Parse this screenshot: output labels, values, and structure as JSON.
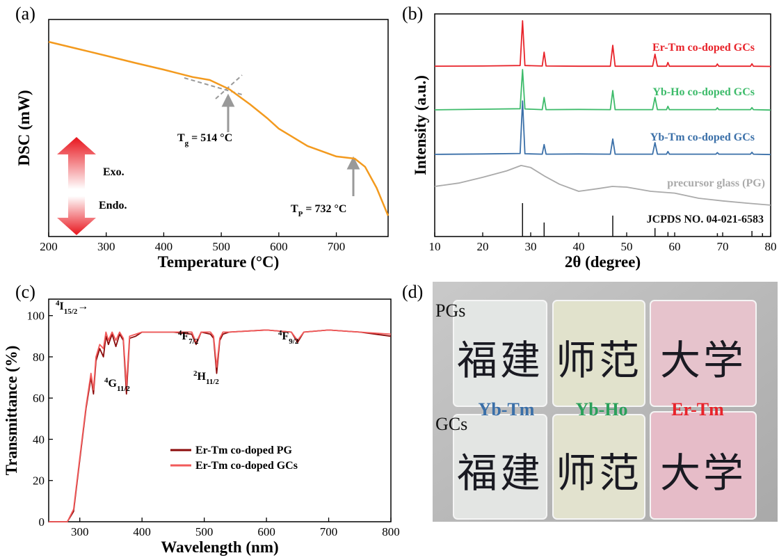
{
  "chart_data": [
    {
      "type": "line",
      "panel_label": "(a)",
      "x_label": "Temperature (°C)",
      "y_label": "DSC (mW)",
      "xlim": [
        200,
        790
      ],
      "xticks": [
        200,
        300,
        400,
        500,
        600,
        700
      ],
      "ylim": [
        0,
        100
      ],
      "series": [
        {
          "color": "#f39a1e",
          "x": [
            200,
            250,
            300,
            350,
            400,
            450,
            480,
            514,
            550,
            580,
            600,
            620,
            640,
            650,
            700,
            732,
            750,
            770,
            790
          ],
          "values": [
            89.7,
            86.5,
            83.3,
            80,
            76.9,
            73.5,
            72.1,
            67.9,
            60.9,
            54.5,
            49.7,
            46.5,
            43.3,
            41.7,
            36.9,
            35.9,
            32.1,
            22.4,
            9.6
          ]
        }
      ],
      "annotations": [
        {
          "parts": [
            {
              "text": "T"
            },
            {
              "text": "g",
              "style": "sub"
            },
            {
              "text": " = 514 °C"
            }
          ]
        },
        {
          "parts": [
            {
              "text": "T"
            },
            {
              "text": "P",
              "style": "sub"
            },
            {
              "text": " = 732 °C"
            }
          ]
        },
        {
          "parts": [
            {
              "text": "Exo."
            }
          ]
        },
        {
          "parts": [
            {
              "text": "Endo."
            }
          ]
        }
      ]
    },
    {
      "type": "line",
      "panel_label": "(b)",
      "x_label": "2θ (degree)",
      "y_label": "Intensity (a.u.)",
      "xlim": [
        10,
        80
      ],
      "xticks": [
        10,
        20,
        30,
        40,
        50,
        60,
        70,
        80
      ],
      "ylim": [
        0,
        100
      ],
      "series": [
        {
          "name": "Er-Tm co-doped GCs",
          "color": "#e8232a",
          "x": [
            10,
            20,
            27.8,
            28.3,
            28.8,
            32.4,
            32.8,
            33.2,
            40,
            46.6,
            47.1,
            47.6,
            55.4,
            55.9,
            56.4,
            58.3,
            58.6,
            58.9,
            68.6,
            68.9,
            69.2,
            75.8,
            76.1,
            76.4,
            80
          ],
          "values": [
            76.5,
            76.6,
            76.8,
            96.9,
            76.8,
            76.6,
            82.8,
            76.6,
            76.5,
            76.5,
            85.9,
            76.5,
            76.5,
            81.9,
            76.5,
            76.5,
            78.2,
            76.5,
            76.5,
            77.5,
            76.5,
            76.5,
            77.6,
            76.5,
            76.4
          ]
        },
        {
          "name": "Yb-Ho co-doped GCs",
          "color": "#3dbb6a",
          "x": [
            10,
            20,
            27.8,
            28.3,
            28.8,
            32.4,
            32.8,
            33.2,
            40,
            46.6,
            47.1,
            47.6,
            55.4,
            55.9,
            56.4,
            58.3,
            58.6,
            58.9,
            68.6,
            68.9,
            69.2,
            75.8,
            76.1,
            76.4,
            80
          ],
          "values": [
            56.9,
            57.2,
            57.4,
            75,
            57.3,
            57,
            62.5,
            57,
            57.1,
            57,
            65.6,
            57,
            57,
            62.5,
            57,
            57,
            58.5,
            57,
            57,
            57.8,
            57,
            57,
            57.9,
            57,
            56.8
          ]
        },
        {
          "name": "Yb-Tm co-doped GCs",
          "color": "#3a6fa8",
          "x": [
            10,
            20,
            27.8,
            28.3,
            28.8,
            32.4,
            32.8,
            33.2,
            40,
            46.6,
            47.1,
            47.6,
            55.4,
            55.9,
            56.4,
            58.3,
            58.6,
            58.9,
            68.6,
            68.9,
            69.2,
            75.8,
            76.1,
            76.4,
            80
          ],
          "values": [
            36.9,
            37.1,
            37.3,
            60.9,
            37.2,
            37,
            41.3,
            37,
            37.1,
            37,
            43.8,
            37,
            37,
            42.2,
            37,
            37,
            38.2,
            37,
            37,
            37.7,
            37,
            37,
            37.8,
            37,
            36.8
          ]
        },
        {
          "name": "precursor glass (PG)",
          "color": "#aaaaaa",
          "x": [
            10,
            15,
            20,
            25,
            28,
            30,
            33,
            36,
            40,
            44,
            47,
            50,
            55,
            60,
            65,
            70,
            75,
            80
          ],
          "values": [
            22.5,
            24,
            26.6,
            29.5,
            31.9,
            31,
            27,
            23.5,
            20.3,
            21.5,
            22.5,
            22.2,
            20.3,
            19.5,
            17.2,
            16,
            15,
            14.1
          ]
        },
        {
          "name": "JCPDS NO. 04-021-6583",
          "color": "#111111",
          "kind": "stick",
          "x": [
            28.3,
            32.8,
            47.1,
            55.9,
            58.6,
            68.9,
            76.1,
            78.3
          ],
          "values": [
            15,
            6.3,
            9.4,
            3.8,
            2,
            1.5,
            2.5,
            1.5
          ]
        }
      ]
    },
    {
      "type": "line",
      "panel_label": "(c)",
      "x_label": "Wavelength (nm)",
      "y_label": "Transmittance (%)",
      "xlim": [
        250,
        800
      ],
      "xticks": [
        300,
        400,
        500,
        600,
        700,
        800
      ],
      "ylim": [
        0,
        108
      ],
      "yticks": [
        0,
        20,
        40,
        60,
        80,
        100
      ],
      "series": [
        {
          "name": "Er-Tm co-doped PG",
          "color": "#8b0a0a",
          "x": [
            250,
            280,
            290,
            300,
            310,
            318,
            322,
            326,
            332,
            338,
            342,
            346,
            352,
            358,
            364,
            370,
            375,
            380,
            390,
            400,
            450,
            480,
            487,
            495,
            510,
            515,
            520,
            525,
            530,
            540,
            600,
            640,
            650,
            660,
            700,
            750,
            800
          ],
          "values": [
            0,
            0,
            5,
            30,
            55,
            70,
            62,
            78,
            84,
            80,
            90,
            86,
            91,
            85,
            91,
            88,
            62,
            89,
            90,
            92,
            92,
            91,
            86,
            92,
            91,
            89,
            72,
            88,
            91,
            92,
            93,
            92,
            87,
            92,
            93,
            92,
            90
          ]
        },
        {
          "name": "Er-Tm co-doped GCs",
          "color": "#f25a5a",
          "x": [
            250,
            280,
            290,
            300,
            310,
            318,
            322,
            326,
            332,
            338,
            342,
            346,
            352,
            358,
            364,
            370,
            375,
            380,
            390,
            400,
            450,
            480,
            487,
            495,
            510,
            515,
            520,
            525,
            530,
            540,
            600,
            640,
            650,
            660,
            700,
            750,
            800
          ],
          "values": [
            0,
            0,
            6,
            31,
            56,
            72,
            64,
            80,
            86,
            84,
            92,
            88,
            92,
            88,
            92,
            89,
            66,
            90,
            91,
            92,
            92,
            92,
            87,
            92,
            92,
            90,
            75,
            89,
            92,
            92,
            93,
            92,
            88,
            92,
            93,
            92,
            91
          ]
        }
      ],
      "annotations": [
        {
          "parts": [
            {
              "text": "4",
              "style": "sup"
            },
            {
              "text": "I"
            },
            {
              "text": "15/2",
              "style": "sub"
            },
            {
              "text": "→"
            }
          ]
        },
        {
          "parts": [
            {
              "text": "4",
              "style": "sup"
            },
            {
              "text": "G"
            },
            {
              "text": "11/2",
              "style": "sub"
            }
          ]
        },
        {
          "parts": [
            {
              "text": "4",
              "style": "sup"
            },
            {
              "text": "F"
            },
            {
              "text": "7/2",
              "style": "sub"
            }
          ]
        },
        {
          "parts": [
            {
              "text": "2",
              "style": "sup"
            },
            {
              "text": "H"
            },
            {
              "text": "11/2",
              "style": "sub"
            }
          ]
        },
        {
          "parts": [
            {
              "text": "4",
              "style": "sup"
            },
            {
              "text": "F"
            },
            {
              "text": "9/2",
              "style": "sub"
            }
          ]
        }
      ]
    }
  ],
  "photo": {
    "panel_label": "(d)",
    "rows": [
      {
        "label": "PGs",
        "tiles": [
          "福建",
          "师范",
          "大学"
        ]
      },
      {
        "label": "GCs",
        "tiles": [
          "福建",
          "师范",
          "大学"
        ]
      }
    ],
    "sample_labels": [
      "Yb-Tm",
      "Yb-Ho",
      "Er-Tm"
    ]
  }
}
